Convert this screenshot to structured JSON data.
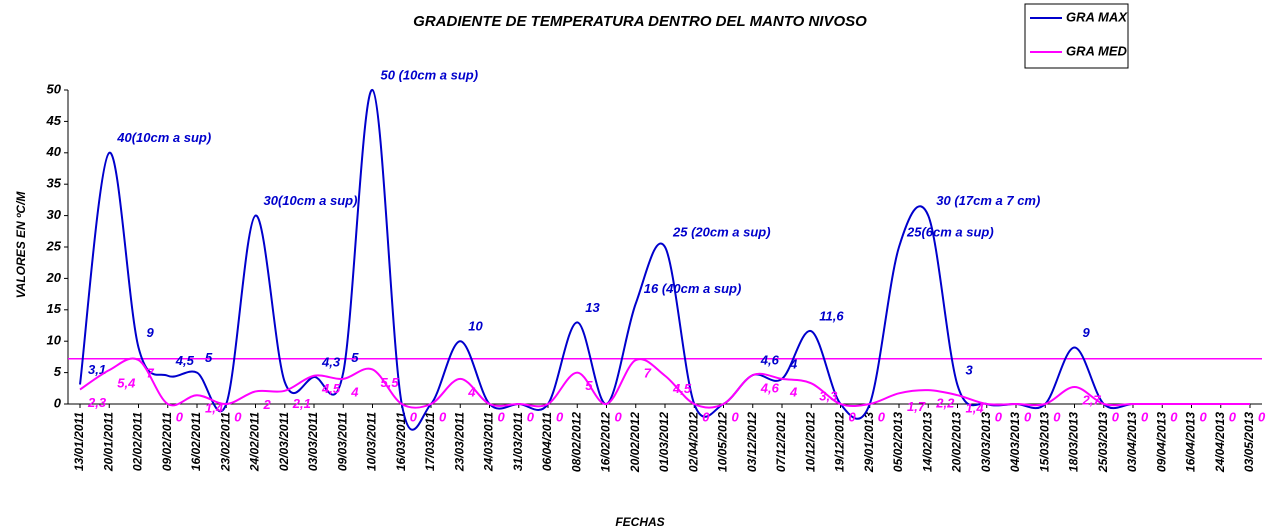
{
  "chart_data": {
    "type": "line",
    "title": "GRADIENTE DE TEMPERATURA DENTRO DEL MANTO NIVOSO",
    "y_label": "VALORES EN ºC/M",
    "x_label": "FECHAS",
    "categories": [
      "13/01/2011",
      "20/01/2011",
      "02/02/2011",
      "09/02/2011",
      "16/02/2011",
      "23/02/2011",
      "24/02/2011",
      "02/03/2011",
      "03/03/2011",
      "09/03/2011",
      "10/03/2011",
      "16/03/2011",
      "17/03/2011",
      "23/03/2011",
      "24/03/2011",
      "31/03/2011",
      "06/04/2011",
      "08/02/2012",
      "16/02/2012",
      "20/02/2012",
      "01/03/2012",
      "02/04/2012",
      "10/05/2012",
      "03/12/2012",
      "07/12/2012",
      "10/12/2012",
      "19/12/2012",
      "29/01/2013",
      "05/02/2013",
      "14/02/2013",
      "20/02/2013",
      "03/03/2013",
      "04/03/2013",
      "15/03/2013",
      "18/03/2013",
      "25/03/2013",
      "03/04/2013",
      "09/04/2013",
      "16/04/2013",
      "24/04/2013",
      "03/05/2013"
    ],
    "series": [
      {
        "name": "GRA MAX",
        "color": "#0000cc",
        "values": [
          3.1,
          40,
          9,
          4.5,
          5,
          0,
          30,
          3.5,
          4.3,
          5,
          50,
          0,
          0,
          10,
          0,
          0,
          0,
          13,
          0,
          16,
          25,
          0,
          0,
          4.6,
          4,
          11.6,
          0,
          0,
          25,
          30,
          3,
          0,
          0,
          0,
          9,
          0,
          0,
          0,
          0,
          0,
          0
        ],
        "value_labels": [
          "3,1",
          "40(10cm a sup)",
          "9",
          "4,5",
          "5",
          null,
          "30(10cm a sup)",
          null,
          "4,3",
          "5",
          "50 (10cm a sup)",
          null,
          null,
          "10",
          null,
          null,
          null,
          "13",
          null,
          "16 (40cm a sup)",
          "25 (20cm a sup)",
          null,
          null,
          "4,6",
          "4",
          "11,6",
          null,
          null,
          "25(6cm a sup)",
          "30 (17cm a 7 cm)",
          "3",
          null,
          null,
          null,
          "9",
          null,
          null,
          null,
          null,
          null,
          null
        ]
      },
      {
        "name": "GRA MED",
        "color": "#ff00ff",
        "values": [
          2.3,
          5.4,
          7,
          0,
          1.4,
          0,
          2,
          2.1,
          4.5,
          4,
          5.5,
          0,
          0,
          4,
          0,
          0,
          0,
          5,
          0,
          7,
          4.5,
          0,
          0,
          4.6,
          4,
          3.3,
          0,
          0,
          1.7,
          2.2,
          1.4,
          0,
          0,
          0,
          2.7,
          0,
          0,
          0,
          0,
          0,
          0
        ],
        "value_labels": [
          "2,3",
          "5,4",
          "7",
          "0",
          "1,4",
          "0",
          "2",
          "2,1",
          "4,5",
          "4",
          "5,5",
          "0",
          "0",
          "4",
          "0",
          "0",
          "0",
          "5",
          "0",
          "7",
          "4,5",
          "0",
          "0",
          "4,6",
          "4",
          "3,3",
          "0",
          "0",
          "1,7",
          "2,2",
          "1,4",
          "0",
          "0",
          "0",
          "2,7",
          "0",
          "0",
          "0",
          "0",
          "0",
          "0"
        ]
      }
    ],
    "reference_line": {
      "value": 7.2,
      "color": "#ff00ff"
    },
    "ylim": [
      0,
      50
    ],
    "yticks": [
      0,
      5,
      10,
      15,
      20,
      25,
      30,
      35,
      40,
      45,
      50
    ],
    "grid": false,
    "legend": "upper right"
  }
}
